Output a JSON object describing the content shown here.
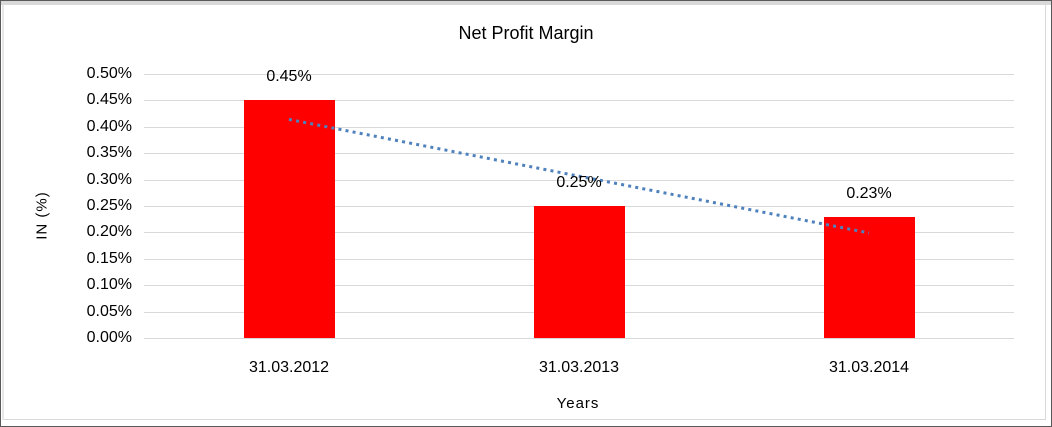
{
  "chart_data": {
    "type": "bar",
    "title": "Net Profit Margin",
    "categories": [
      "31.03.2012",
      "31.03.2013",
      "31.03.2014"
    ],
    "values": [
      0.45,
      0.25,
      0.23
    ],
    "data_labels": [
      "0.45%",
      "0.25%",
      "0.23%"
    ],
    "xlabel": "Years",
    "ylabel": "IN (%)",
    "ylim": [
      0,
      0.5
    ],
    "y_ticks": [
      "0.50%",
      "0.45%",
      "0.40%",
      "0.35%",
      "0.30%",
      "0.25%",
      "0.20%",
      "0.15%",
      "0.10%",
      "0.05%",
      "0.00%"
    ],
    "grid": "horizontal",
    "legend": "none",
    "bar_color": "#ff0000",
    "grid_color": "#d9d9d9",
    "trendline": {
      "style": "dotted",
      "color": "#4f81bd",
      "start_category_index": 0,
      "start_value": 0.414,
      "end_category_index": 2,
      "end_value": 0.199
    }
  }
}
